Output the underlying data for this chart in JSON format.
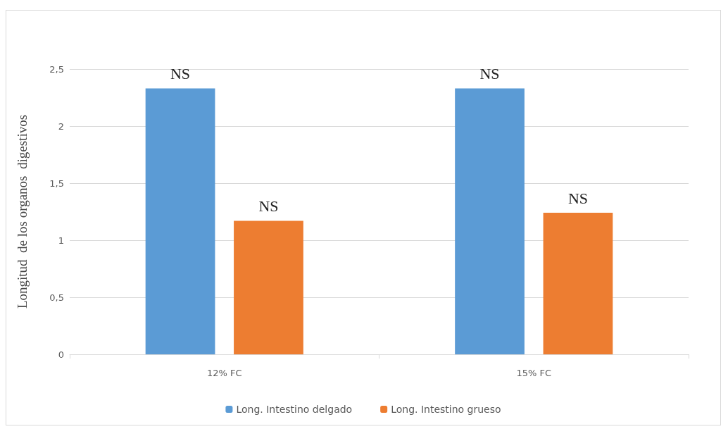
{
  "chart_data": {
    "type": "bar",
    "ylabel": "Longitud  de los organos  digestivos",
    "categories": [
      "12% FC",
      "15% FC"
    ],
    "series": [
      {
        "name": "Long. Intestino delgado",
        "color": "#5b9bd5",
        "values": [
          2.33,
          2.33
        ],
        "value_labels": [
          "NS",
          "NS"
        ]
      },
      {
        "name": "Long. Intestino grueso",
        "color": "#ed7d31",
        "values": [
          1.17,
          1.24
        ],
        "value_labels": [
          "NS",
          "NS"
        ]
      }
    ],
    "ylim": [
      0,
      2.5
    ],
    "yticks": [
      0,
      {
        "value": 0.5,
        "label": "0,5"
      },
      1,
      {
        "value": 1.5,
        "label": "1,5"
      },
      2,
      {
        "value": 2.5,
        "label": "2,5"
      }
    ],
    "grid": "y",
    "legend": "bottom"
  }
}
